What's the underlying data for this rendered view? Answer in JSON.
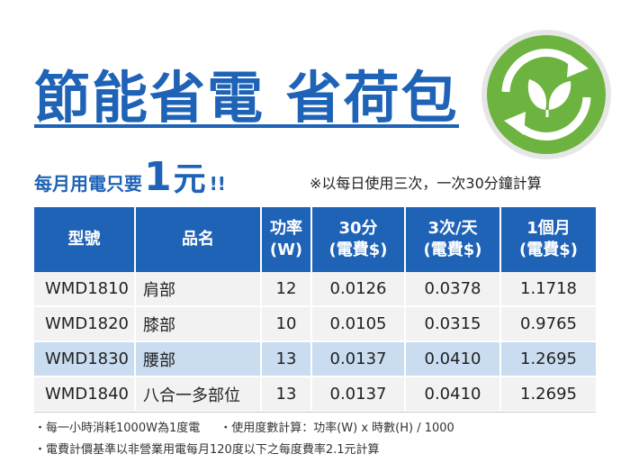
{
  "title": "節能省電 省荷包",
  "promo": {
    "prefix": "每月用電只要",
    "amount": "1",
    "unit": "元",
    "suffix": "!!"
  },
  "calc_note": "※以每日使用三次，一次30分鐘計算",
  "table": {
    "headers": [
      {
        "line1": "型號",
        "line2": ""
      },
      {
        "line1": "品名",
        "line2": ""
      },
      {
        "line1": "功率",
        "line2": "(W)"
      },
      {
        "line1": "30分",
        "line2": "(電費$)"
      },
      {
        "line1": "3次/天",
        "line2": "(電費$)"
      },
      {
        "line1": "1個月",
        "line2": "(電費$)"
      }
    ],
    "rows": [
      {
        "model": "WMD1810",
        "part": "肩部",
        "watt": "12",
        "min30": "0.0126",
        "day3": "0.0378",
        "month": "1.1718"
      },
      {
        "model": "WMD1820",
        "part": "膝部",
        "watt": "10",
        "min30": "0.0105",
        "day3": "0.0315",
        "month": "0.9765"
      },
      {
        "model": "WMD1830",
        "part": "腰部",
        "watt": "13",
        "min30": "0.0137",
        "day3": "0.0410",
        "month": "1.2695"
      },
      {
        "model": "WMD1840",
        "part": "八合一多部位",
        "watt": "13",
        "min30": "0.0137",
        "day3": "0.0410",
        "month": "1.2695"
      }
    ]
  },
  "footnotes": {
    "line1a": "・每一小時消耗1000W為1度電",
    "line1b": "・使用度數計算：功率(W) x 時數(H) / 1000",
    "line2": "・電費計價基準以非營業用電每月120度以下之每度費率2.1元計算"
  },
  "colors": {
    "brand_blue": "#1f63b7",
    "eco_green": "#6db33f",
    "highlight_row": "#c9dcf0"
  },
  "logo_icon": "recycle-leaf-icon"
}
